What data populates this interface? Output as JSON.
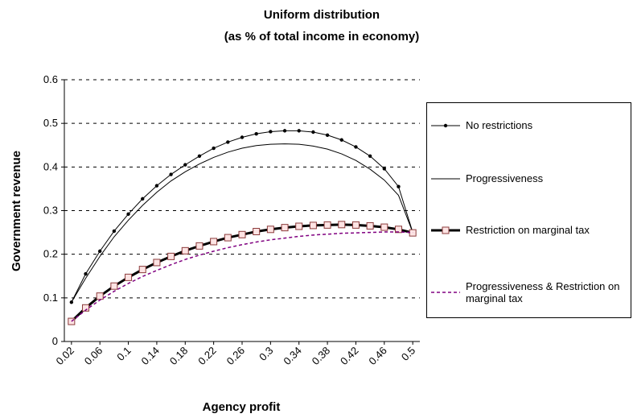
{
  "chart_data": {
    "type": "line",
    "title": "Uniform distribution",
    "subtitle": "(as % of total income in economy)",
    "xlabel": "Agency profit",
    "ylabel": "Government revenue",
    "x": [
      0.02,
      0.04,
      0.06,
      0.08,
      0.1,
      0.12,
      0.14,
      0.16,
      0.18,
      0.2,
      0.22,
      0.24,
      0.26,
      0.28,
      0.3,
      0.32,
      0.34,
      0.36,
      0.38,
      0.4,
      0.42,
      0.44,
      0.46,
      0.48,
      0.5
    ],
    "xlim": [
      0.01,
      0.51
    ],
    "xticks": [
      0.02,
      0.06,
      0.1,
      0.14,
      0.18,
      0.22,
      0.26,
      0.3,
      0.34,
      0.38,
      0.42,
      0.46,
      0.5
    ],
    "ylim": [
      0,
      0.6
    ],
    "yticks": [
      0,
      0.1,
      0.2,
      0.3,
      0.4,
      0.5,
      0.6
    ],
    "grid": true,
    "legend": "right",
    "series": [
      {
        "name": "No restrictions",
        "color": "#000000",
        "width": 1,
        "marker": "circle",
        "dash": false,
        "values": [
          0.09,
          0.155,
          0.207,
          0.253,
          0.292,
          0.327,
          0.357,
          0.383,
          0.405,
          0.425,
          0.443,
          0.457,
          0.468,
          0.476,
          0.481,
          0.483,
          0.483,
          0.48,
          0.473,
          0.462,
          0.446,
          0.425,
          0.396,
          0.355,
          0.25
        ]
      },
      {
        "name": "Progressiveness",
        "color": "#000000",
        "width": 1,
        "marker": null,
        "dash": false,
        "values": [
          0.09,
          0.145,
          0.195,
          0.24,
          0.278,
          0.312,
          0.342,
          0.368,
          0.389,
          0.407,
          0.422,
          0.434,
          0.443,
          0.449,
          0.452,
          0.453,
          0.452,
          0.448,
          0.441,
          0.43,
          0.415,
          0.395,
          0.37,
          0.335,
          0.25
        ]
      },
      {
        "name": "Restriction on marginal tax",
        "color": "#000000",
        "width": 3,
        "marker": "square",
        "dash": false,
        "values": [
          0.046,
          0.077,
          0.104,
          0.127,
          0.147,
          0.165,
          0.181,
          0.195,
          0.208,
          0.219,
          0.229,
          0.238,
          0.245,
          0.252,
          0.257,
          0.261,
          0.264,
          0.266,
          0.267,
          0.268,
          0.267,
          0.265,
          0.262,
          0.257,
          0.249
        ]
      },
      {
        "name": "Progressiveness & Restriction on marginal tax",
        "color": "#800080",
        "width": 1.5,
        "marker": null,
        "dash": true,
        "values": [
          0.046,
          0.072,
          0.095,
          0.115,
          0.133,
          0.149,
          0.163,
          0.176,
          0.188,
          0.198,
          0.207,
          0.215,
          0.222,
          0.228,
          0.233,
          0.237,
          0.241,
          0.244,
          0.246,
          0.248,
          0.249,
          0.25,
          0.251,
          0.251,
          0.25
        ]
      }
    ]
  }
}
